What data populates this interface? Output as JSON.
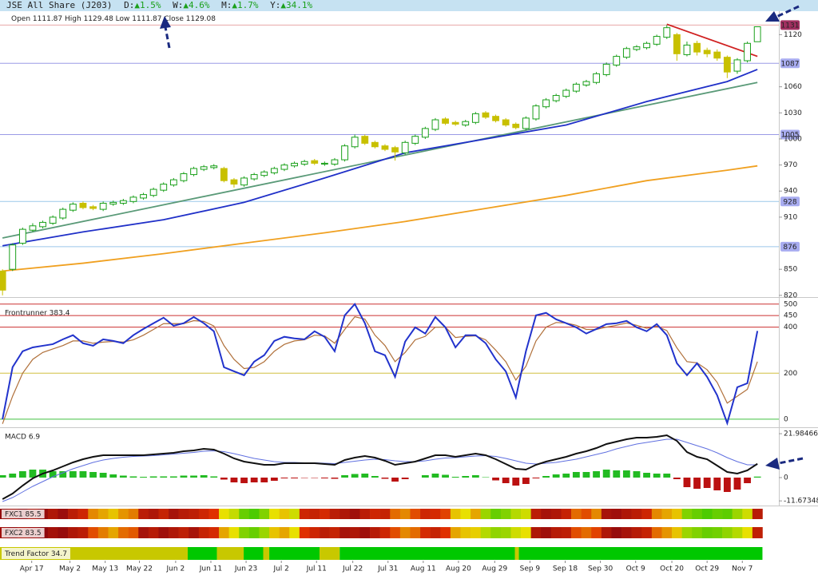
{
  "header": {
    "title": "JSE All Share (J203)",
    "changes": [
      {
        "label": "D:",
        "value": "▲1.5%"
      },
      {
        "label": "W:",
        "value": "▲4.6%"
      },
      {
        "label": "M:",
        "value": "▲1.7%"
      },
      {
        "label": "Y:",
        "value": "▲34.1%"
      }
    ],
    "ohlc": [
      {
        "label": "Open",
        "value": 1111.87
      },
      {
        "label": "High",
        "value": 1129.48
      },
      {
        "label": "Low",
        "value": 1111.87
      },
      {
        "label": "Close",
        "value": 1129.08
      }
    ]
  },
  "chart_data": [
    {
      "type": "candlestick",
      "xlim": [
        -0.25,
        77.13
      ],
      "ylim": [
        818,
        1147
      ],
      "yticks": [
        1120,
        1060,
        1030,
        1000,
        970,
        940,
        910,
        850,
        820
      ],
      "xticks": [
        {
          "value": 2.9,
          "label": "Apr 17"
        },
        {
          "value": 6.7,
          "label": "May 2"
        },
        {
          "value": 10.2,
          "label": "May 13"
        },
        {
          "value": 13.6,
          "label": "May 22"
        },
        {
          "value": 17.2,
          "label": "Jun 2"
        },
        {
          "value": 20.7,
          "label": "Jun 11"
        },
        {
          "value": 24.2,
          "label": "Jun 23"
        },
        {
          "value": 27.7,
          "label": "Jul 2"
        },
        {
          "value": 31.2,
          "label": "Jul 11"
        },
        {
          "value": 34.8,
          "label": "Jul 22"
        },
        {
          "value": 38.3,
          "label": "Jul 31"
        },
        {
          "value": 41.8,
          "label": "Aug 11"
        },
        {
          "value": 45.3,
          "label": "Aug 20"
        },
        {
          "value": 48.9,
          "label": "Aug 29"
        },
        {
          "value": 52.4,
          "label": "Sep 9"
        },
        {
          "value": 55.9,
          "label": "Sep 18"
        },
        {
          "value": 59.4,
          "label": "Sep 30"
        },
        {
          "value": 62.9,
          "label": "Oct 9"
        },
        {
          "value": 66.5,
          "label": "Oct 20"
        },
        {
          "value": 70,
          "label": "Oct 29"
        },
        {
          "value": 73.5,
          "label": "Nov 7"
        }
      ],
      "up_color": "#1aa01a",
      "down_color": "#c8c000",
      "open": [
        848,
        850,
        880,
        895,
        899,
        903,
        909,
        918,
        926,
        922,
        919,
        925,
        926,
        928,
        932,
        935,
        941,
        947,
        952,
        959,
        965,
        967,
        966,
        953,
        947,
        954,
        958,
        961,
        965,
        969,
        971,
        975,
        971,
        971,
        976,
        991,
        1003,
        996,
        992,
        990,
        984,
        995,
        1002,
        1011,
        1023,
        1019,
        1016,
        1019,
        1030,
        1026,
        1022,
        1017,
        1012,
        1023,
        1037,
        1044,
        1049,
        1055,
        1062,
        1065,
        1074,
        1085,
        1094,
        1103,
        1105,
        1109,
        1117,
        1120,
        1097,
        1110,
        1102,
        1100,
        1094,
        1078,
        1090,
        1111.87
      ],
      "high": [
        850,
        880,
        898,
        903,
        906,
        912,
        921,
        927,
        928,
        924,
        928,
        929,
        931,
        935,
        938,
        944,
        950,
        955,
        962,
        968,
        970,
        971,
        968,
        955,
        957,
        961,
        964,
        968,
        972,
        974,
        976,
        977,
        974,
        978,
        994,
        1005,
        1005,
        998,
        994,
        992,
        998,
        1005,
        1014,
        1024,
        1025,
        1021,
        1022,
        1031,
        1032,
        1028,
        1024,
        1019,
        1026,
        1040,
        1047,
        1052,
        1058,
        1065,
        1068,
        1077,
        1088,
        1097,
        1106,
        1108,
        1112,
        1120,
        1131,
        1122,
        1112,
        1113,
        1105,
        1103,
        1096,
        1093,
        1112,
        1129.48
      ],
      "low": [
        820,
        848,
        878,
        893,
        897,
        901,
        907,
        916,
        919,
        918,
        917,
        923,
        924,
        926,
        930,
        933,
        939,
        945,
        950,
        957,
        963,
        965,
        950,
        944,
        945,
        952,
        956,
        959,
        963,
        967,
        969,
        970,
        969,
        969,
        974,
        989,
        993,
        989,
        986,
        975,
        982,
        993,
        1000,
        1009,
        1016,
        1015,
        1014,
        1017,
        1023,
        1019,
        1014,
        1011,
        1010,
        1021,
        1035,
        1042,
        1047,
        1053,
        1060,
        1063,
        1072,
        1083,
        1092,
        1101,
        1103,
        1107,
        1115,
        1090,
        1095,
        1096,
        1094,
        1090,
        1070,
        1075,
        1088,
        1111.87
      ],
      "close": [
        826,
        878,
        896,
        900,
        904,
        910,
        919,
        925,
        921,
        920,
        926,
        927,
        929,
        933,
        936,
        942,
        948,
        953,
        960,
        966,
        968,
        969,
        952,
        948,
        955,
        959,
        962,
        966,
        970,
        972,
        974,
        972,
        972,
        976,
        992,
        1002,
        995,
        991,
        988,
        985,
        996,
        1003,
        1012,
        1022,
        1018,
        1017,
        1020,
        1029,
        1025,
        1021,
        1016,
        1013,
        1024,
        1038,
        1045,
        1050,
        1056,
        1063,
        1066,
        1075,
        1086,
        1095,
        1104,
        1106,
        1110,
        1118,
        1128,
        1098,
        1108,
        1100,
        1098,
        1093,
        1077,
        1091,
        1110,
        1129.08
      ],
      "levels": [
        {
          "value": 1131,
          "color": "#e8a8a8",
          "label_color": "#a03060",
          "text_color": "#ffffff"
        },
        {
          "value": 1087,
          "color": "#9a9ae6",
          "label_color": "#a8acf0",
          "text_color": "#1a2080"
        },
        {
          "value": 1005,
          "color": "#9a9ae6",
          "label_color": "#a8acf0",
          "text_color": "#1a2080"
        },
        {
          "value": 928,
          "color": "#9cc8ea",
          "label_color": "#a8acf0",
          "text_color": "#1a2080"
        },
        {
          "value": 876,
          "color": "#9cc8ea",
          "label_color": "#a8acf0",
          "text_color": "#1a2080"
        }
      ],
      "lines": [
        {
          "color": "#5a9a78",
          "x": [
            0,
            75
          ],
          "values": [
            886,
            1065
          ]
        },
        {
          "color": "#2030c8",
          "x": [
            0,
            8,
            16,
            24,
            32,
            40,
            48,
            56,
            64,
            72,
            75
          ],
          "values": [
            877,
            893,
            907,
            927,
            955,
            984,
            1000,
            1016,
            1043,
            1066,
            1080
          ]
        },
        {
          "color": "#f0a020",
          "x": [
            0,
            8,
            16,
            24,
            32,
            40,
            48,
            56,
            64,
            72,
            75
          ],
          "values": [
            848,
            857,
            868,
            880,
            892,
            905,
            920,
            935,
            952,
            964,
            969
          ]
        },
        {
          "color": "#d02020",
          "x": [
            66,
            75
          ],
          "values": [
            1132,
            1095
          ]
        }
      ]
    },
    {
      "type": "line",
      "title": "Frontrunner 383.4",
      "ylim": [
        -28,
        520
      ],
      "yticks": [
        500,
        450,
        400,
        200,
        0
      ],
      "tick_line_colors": [
        "#cc3030",
        "#cc3030",
        "#cc3030",
        "#d0c040",
        "#40c040"
      ],
      "series": [
        {
          "color": "#2233cc",
          "values": [
            0,
            226,
            295,
            312,
            319,
            326,
            347,
            365,
            330,
            319,
            347,
            340,
            330,
            365,
            392,
            417,
            441,
            406,
            417,
            444,
            417,
            382,
            226,
            208,
            191,
            250,
            278,
            340,
            358,
            351,
            347,
            382,
            358,
            295,
            451,
            500,
            417,
            295,
            278,
            184,
            337,
            399,
            372,
            444,
            399,
            312,
            365,
            365,
            330,
            260,
            208,
            94,
            295,
            451,
            462,
            434,
            417,
            399,
            372,
            392,
            413,
            417,
            427,
            399,
            382,
            413,
            365,
            243,
            191,
            243,
            184,
            104,
            -17,
            139,
            156,
            383.4
          ]
        },
        {
          "color": "#b0703a",
          "values": [
            -20,
            100,
            200,
            260,
            290,
            305,
            320,
            340,
            340,
            330,
            335,
            338,
            335,
            345,
            365,
            390,
            415,
            415,
            415,
            428,
            425,
            405,
            320,
            260,
            220,
            225,
            250,
            295,
            325,
            340,
            345,
            365,
            362,
            330,
            390,
            445,
            435,
            365,
            320,
            250,
            290,
            345,
            360,
            400,
            400,
            355,
            360,
            362,
            345,
            300,
            250,
            170,
            230,
            340,
            400,
            420,
            418,
            408,
            390,
            390,
            400,
            408,
            418,
            408,
            395,
            404,
            385,
            310,
            250,
            245,
            215,
            160,
            70,
            100,
            130,
            250
          ]
        }
      ]
    },
    {
      "type": "macd",
      "title": "MACD 6.9",
      "ylim": [
        -12.8,
        23.2
      ],
      "yticks": [
        21.98466,
        0,
        -11.67348
      ],
      "series": [
        {
          "color": "#6070e0",
          "values": [
            -12,
            -10,
            -7.2,
            -4.4,
            -2,
            0.4,
            2.4,
            4.4,
            6,
            7.6,
            8.8,
            9.6,
            10.2,
            10.6,
            10.8,
            11,
            11.4,
            11.8,
            12.2,
            12.6,
            13.2,
            13.4,
            13,
            12,
            10.8,
            9.6,
            8.8,
            8,
            7.6,
            7.6,
            7.4,
            7.4,
            7.2,
            7,
            7.6,
            8.2,
            8.8,
            9.2,
            9,
            8.4,
            8,
            8,
            8.4,
            9.2,
            9.8,
            10,
            10.4,
            10.8,
            11,
            10.6,
            9.6,
            8.4,
            7.2,
            6.8,
            7.2,
            7.6,
            8.4,
            9.2,
            10.4,
            11.6,
            12.8,
            14.4,
            15.6,
            16.8,
            17.6,
            18.4,
            19.2,
            19.2,
            17.6,
            16,
            14.4,
            12.4,
            10,
            8,
            6.4,
            6.4
          ]
        },
        {
          "color": "#111111",
          "values": [
            -10.8,
            -8,
            -4,
            -0.4,
            2,
            3.6,
            5.6,
            7.6,
            9.2,
            10.4,
            11.2,
            11.2,
            11.2,
            11.2,
            11.2,
            11.6,
            12,
            12.4,
            13.2,
            13.6,
            14.4,
            14,
            12,
            9.6,
            8,
            7.2,
            6.4,
            6.4,
            7.2,
            7.2,
            7.2,
            7.2,
            6.8,
            6.4,
            8.8,
            10,
            10.8,
            10,
            8.4,
            6.4,
            7.2,
            8,
            9.6,
            11.2,
            11.2,
            10.4,
            11.2,
            12,
            11.2,
            9.2,
            6.8,
            4.4,
            4,
            6.4,
            8,
            9.2,
            10.4,
            12,
            13.2,
            14.8,
            16.8,
            18,
            19.2,
            20,
            20,
            20.4,
            21.2,
            18.4,
            12.8,
            10.4,
            9.2,
            6,
            2.8,
            2,
            3.6,
            6.9
          ]
        }
      ],
      "histogram": {
        "pos_color": "#22bb22",
        "neg_color": "#bb1111",
        "values": [
          1.2,
          2,
          3.2,
          4,
          4,
          3.2,
          3.2,
          3.2,
          3.2,
          2.8,
          2.4,
          1.6,
          1,
          0.6,
          0.4,
          0.6,
          0.6,
          0.6,
          1,
          1,
          1.2,
          0.6,
          -1,
          -2.4,
          -2.8,
          -2.4,
          -2.4,
          -1.6,
          -0.4,
          -0.4,
          -0.2,
          -0.2,
          -0.4,
          -0.6,
          1.2,
          1.8,
          2,
          0.8,
          -0.6,
          -2,
          -0.8,
          0,
          1.2,
          2,
          1.4,
          0.4,
          0.8,
          1.2,
          0.2,
          -1.4,
          -2.8,
          -4,
          -3.2,
          -0.4,
          0.8,
          1.6,
          2,
          2.8,
          2.8,
          3.2,
          4,
          3.6,
          3.6,
          3.2,
          2.4,
          2,
          2,
          -0.8,
          -4.8,
          -5.6,
          -5.2,
          -6.4,
          -7.2,
          -6,
          -2.8,
          0.5
        ]
      }
    },
    {
      "type": "heatstrip",
      "title": "FXC1 85.5",
      "color_scale": [
        {
          "value": 0,
          "color": "#00c000"
        },
        {
          "value": 45,
          "color": "#e8e000"
        },
        {
          "value": 75,
          "color": "#e03000"
        },
        {
          "value": 100,
          "color": "#800010"
        }
      ],
      "values": [
        95,
        92,
        96,
        90,
        94,
        88,
        93,
        85,
        80,
        60,
        55,
        50,
        58,
        62,
        85,
        88,
        82,
        90,
        86,
        84,
        80,
        75,
        45,
        38,
        20,
        15,
        25,
        45,
        50,
        40,
        80,
        82,
        78,
        85,
        88,
        92,
        85,
        80,
        82,
        65,
        60,
        70,
        80,
        78,
        72,
        50,
        45,
        55,
        30,
        20,
        25,
        35,
        40,
        85,
        90,
        88,
        82,
        65,
        70,
        60,
        90,
        92,
        88,
        85,
        80,
        60,
        55,
        50,
        25,
        20,
        15,
        20,
        18,
        30,
        40,
        85.5
      ]
    },
    {
      "type": "heatstrip",
      "title": "FXC2 83.5",
      "color_scale": [
        {
          "value": 0,
          "color": "#00c000"
        },
        {
          "value": 45,
          "color": "#e8e000"
        },
        {
          "value": 75,
          "color": "#e03000"
        },
        {
          "value": 100,
          "color": "#800010"
        }
      ],
      "values": [
        92,
        95,
        90,
        93,
        96,
        91,
        94,
        88,
        85,
        70,
        62,
        55,
        65,
        68,
        90,
        86,
        92,
        88,
        84,
        90,
        82,
        78,
        55,
        45,
        25,
        20,
        30,
        50,
        55,
        45,
        75,
        80,
        85,
        82,
        90,
        88,
        92,
        86,
        80,
        70,
        60,
        65,
        78,
        82,
        75,
        55,
        50,
        48,
        35,
        28,
        30,
        40,
        45,
        88,
        92,
        86,
        84,
        70,
        65,
        72,
        88,
        94,
        90,
        86,
        82,
        65,
        58,
        50,
        30,
        25,
        20,
        22,
        28,
        35,
        45,
        83.5
      ]
    },
    {
      "type": "bands",
      "title": "Trend Factor 34.7",
      "segments": [
        {
          "start": -0.25,
          "end": 18.4,
          "color": "#c8c800"
        },
        {
          "start": 18.4,
          "end": 21.3,
          "color": "#00c800"
        },
        {
          "start": 21.3,
          "end": 23.96,
          "color": "#c8c800"
        },
        {
          "start": 23.96,
          "end": 25.9,
          "color": "#00c800"
        },
        {
          "start": 25.9,
          "end": 26.5,
          "color": "#c8c800"
        },
        {
          "start": 26.5,
          "end": 31.5,
          "color": "#00c800"
        },
        {
          "start": 31.5,
          "end": 33.5,
          "color": "#c8c800"
        },
        {
          "start": 33.5,
          "end": 50.9,
          "color": "#00c800"
        },
        {
          "start": 50.9,
          "end": 51.3,
          "color": "#c8c800"
        },
        {
          "start": 51.3,
          "end": 75.5,
          "color": "#00c800"
        }
      ]
    }
  ]
}
